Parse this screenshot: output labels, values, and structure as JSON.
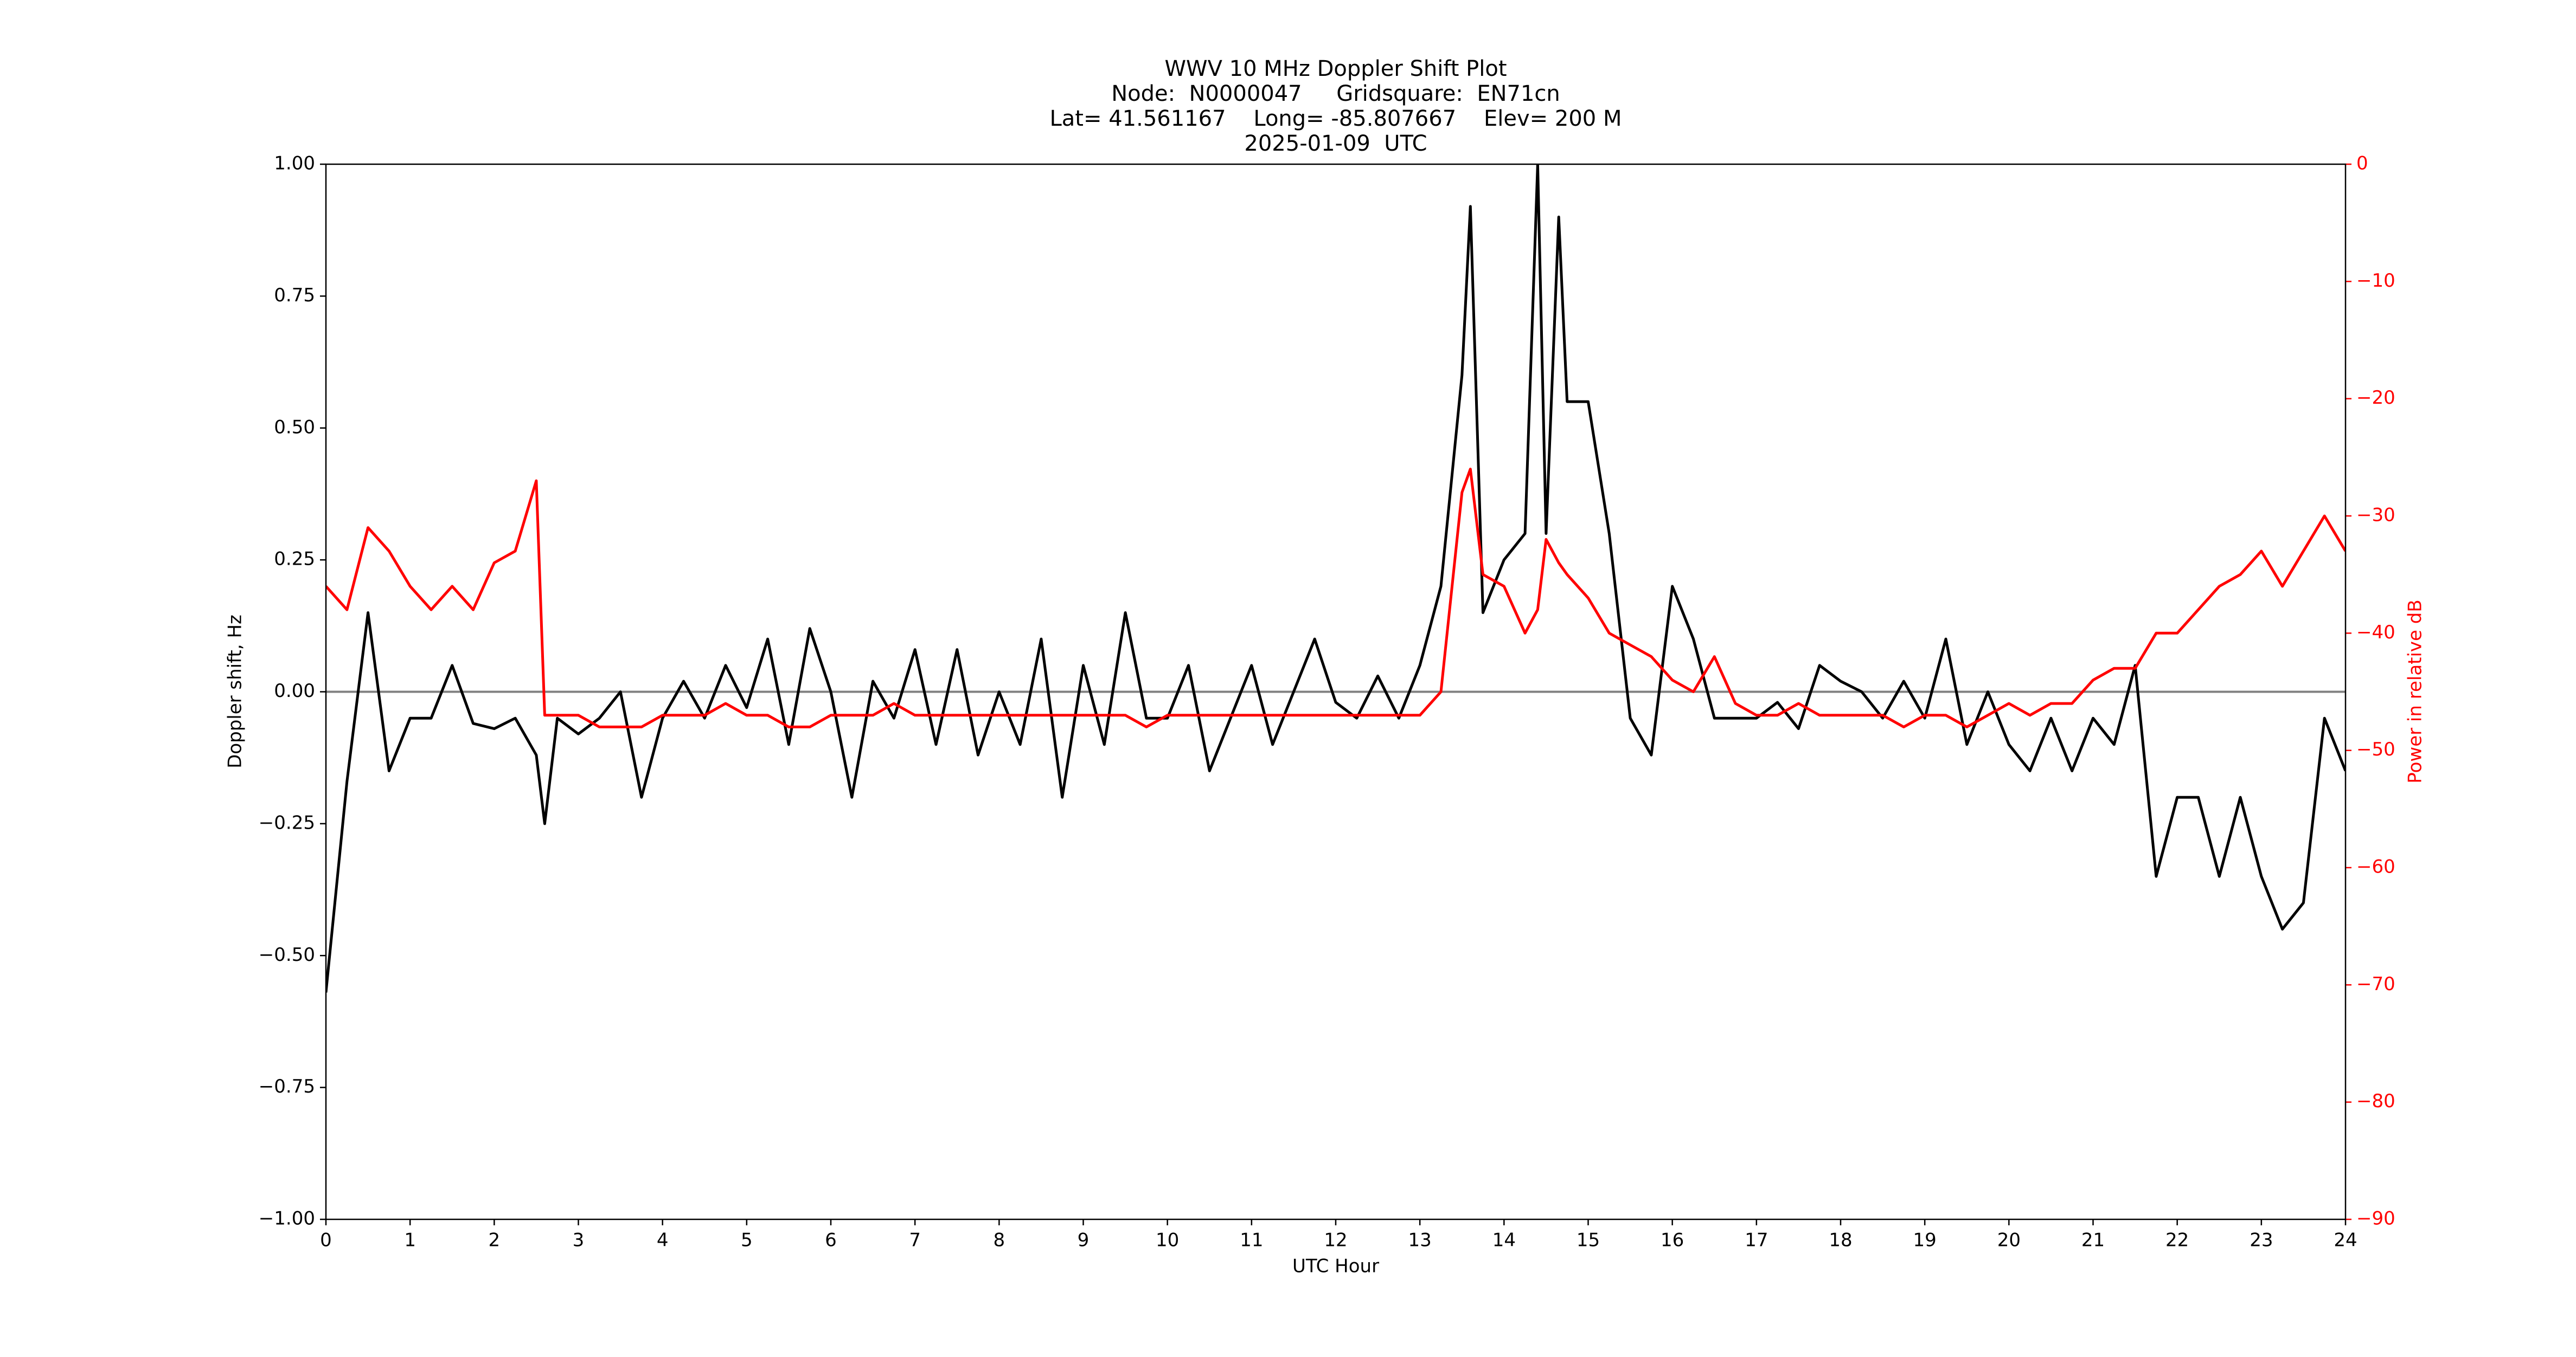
{
  "chart_data": {
    "type": "line",
    "title": "WWV 10 MHz Doppler Shift Plot",
    "subtitle": [
      "Node:  N0000047     Gridsquare:  EN71cn",
      "Lat= 41.561167    Long= -85.807667    Elev= 200 M",
      "2025-01-09  UTC"
    ],
    "x_label": "UTC Hour",
    "y_label": "Doppler shift, Hz",
    "y2_label": "Power in relative dB",
    "x": [
      0,
      0.25,
      0.5,
      0.75,
      1,
      1.25,
      1.5,
      1.75,
      2,
      2.25,
      2.5,
      2.6,
      2.75,
      3,
      3.25,
      3.5,
      3.75,
      4,
      4.25,
      4.5,
      4.75,
      5,
      5.25,
      5.5,
      5.75,
      6,
      6.25,
      6.5,
      6.75,
      7,
      7.25,
      7.5,
      7.75,
      8,
      8.25,
      8.5,
      8.75,
      9,
      9.25,
      9.5,
      9.75,
      10,
      10.25,
      10.5,
      10.75,
      11,
      11.25,
      11.5,
      11.75,
      12,
      12.25,
      12.5,
      12.75,
      13,
      13.25,
      13.5,
      13.6,
      13.75,
      14,
      14.25,
      14.4,
      14.5,
      14.65,
      14.75,
      15,
      15.25,
      15.5,
      15.75,
      16,
      16.25,
      16.5,
      16.75,
      17,
      17.25,
      17.5,
      17.75,
      18,
      18.25,
      18.5,
      18.75,
      19,
      19.25,
      19.5,
      19.75,
      20,
      20.25,
      20.5,
      20.75,
      21,
      21.25,
      21.5,
      21.75,
      22,
      22.25,
      22.5,
      22.75,
      23,
      23.25,
      23.5,
      23.75,
      24
    ],
    "series": [
      {
        "name": "Doppler shift",
        "color": "#000000",
        "values": [
          -0.57,
          -0.17,
          0.15,
          -0.15,
          -0.05,
          -0.05,
          0.05,
          -0.06,
          -0.07,
          -0.05,
          -0.12,
          -0.25,
          -0.05,
          -0.08,
          -0.05,
          0.0,
          -0.2,
          -0.05,
          0.02,
          -0.05,
          0.05,
          -0.03,
          0.1,
          -0.1,
          0.12,
          0.0,
          -0.2,
          0.02,
          -0.05,
          0.08,
          -0.1,
          0.08,
          -0.12,
          0.0,
          -0.1,
          0.1,
          -0.2,
          0.05,
          -0.1,
          0.15,
          -0.05,
          -0.05,
          0.05,
          -0.15,
          -0.05,
          0.05,
          -0.1,
          0.0,
          0.1,
          -0.02,
          -0.05,
          0.03,
          -0.05,
          0.05,
          0.2,
          0.6,
          0.92,
          0.15,
          0.25,
          0.3,
          1.0,
          0.3,
          0.9,
          0.55,
          0.55,
          0.3,
          -0.05,
          -0.12,
          0.2,
          0.1,
          -0.05,
          -0.05,
          -0.05,
          -0.02,
          -0.07,
          0.05,
          0.02,
          0.0,
          -0.05,
          0.02,
          -0.05,
          0.1,
          -0.1,
          0.0,
          -0.1,
          -0.15,
          -0.05,
          -0.15,
          -0.05,
          -0.1,
          0.05,
          -0.35,
          -0.2,
          -0.2,
          -0.35,
          -0.2,
          -0.35,
          -0.45,
          -0.4,
          -0.05,
          -0.15
        ]
      },
      {
        "name": "Power",
        "color": "#ff0000",
        "axis": "y2",
        "values": [
          -36,
          -38,
          -31,
          -33,
          -36,
          -38,
          -36,
          -38,
          -34,
          -33,
          -27,
          -47,
          -47,
          -47,
          -48,
          -48,
          -48,
          -47,
          -47,
          -47,
          -46,
          -47,
          -47,
          -48,
          -48,
          -47,
          -47,
          -47,
          -46,
          -47,
          -47,
          -47,
          -47,
          -47,
          -47,
          -47,
          -47,
          -47,
          -47,
          -47,
          -48,
          -47,
          -47,
          -47,
          -47,
          -47,
          -47,
          -47,
          -47,
          -47,
          -47,
          -47,
          -47,
          -47,
          -45,
          -28,
          -26,
          -35,
          -36,
          -40,
          -38,
          -32,
          -34,
          -35,
          -37,
          -40,
          -41,
          -42,
          -44,
          -45,
          -42,
          -46,
          -47,
          -47,
          -46,
          -47,
          -47,
          -47,
          -47,
          -48,
          -47,
          -47,
          -48,
          -47,
          -46,
          -47,
          -46,
          -46,
          -44,
          -43,
          -43,
          -40,
          -40,
          -38,
          -36,
          -35,
          -33,
          -36,
          -33,
          -30,
          -33
        ]
      }
    ],
    "xlim": [
      0,
      24
    ],
    "xticks": [
      0,
      1,
      2,
      3,
      4,
      5,
      6,
      7,
      8,
      9,
      10,
      11,
      12,
      13,
      14,
      15,
      16,
      17,
      18,
      19,
      20,
      21,
      22,
      23,
      24
    ],
    "ylim": [
      -1,
      1
    ],
    "yticks": [
      {
        "value": 1,
        "label": "1.00"
      },
      {
        "value": 0.75,
        "label": "0.75"
      },
      {
        "value": 0.5,
        "label": "0.50"
      },
      {
        "value": 0.25,
        "label": "0.25"
      },
      {
        "value": 0,
        "label": "0.00"
      },
      {
        "value": -0.25,
        "label": "−0.25"
      },
      {
        "value": -0.5,
        "label": "−0.50"
      },
      {
        "value": -0.75,
        "label": "−0.75"
      },
      {
        "value": -1,
        "label": "−1.00"
      }
    ],
    "y2lim": [
      -90,
      0
    ],
    "y2ticks": [
      0,
      {
        "value": -10,
        "label": "−10"
      },
      {
        "value": -20,
        "label": "−20"
      },
      {
        "value": -30,
        "label": "−30"
      },
      {
        "value": -40,
        "label": "−40"
      },
      {
        "value": -50,
        "label": "−50"
      },
      {
        "value": -60,
        "label": "−60"
      },
      {
        "value": -70,
        "label": "−70"
      },
      {
        "value": -80,
        "label": "−80"
      },
      {
        "value": -90,
        "label": "−90"
      }
    ],
    "hline": 0,
    "hline_color": "#808080",
    "grid": false
  }
}
